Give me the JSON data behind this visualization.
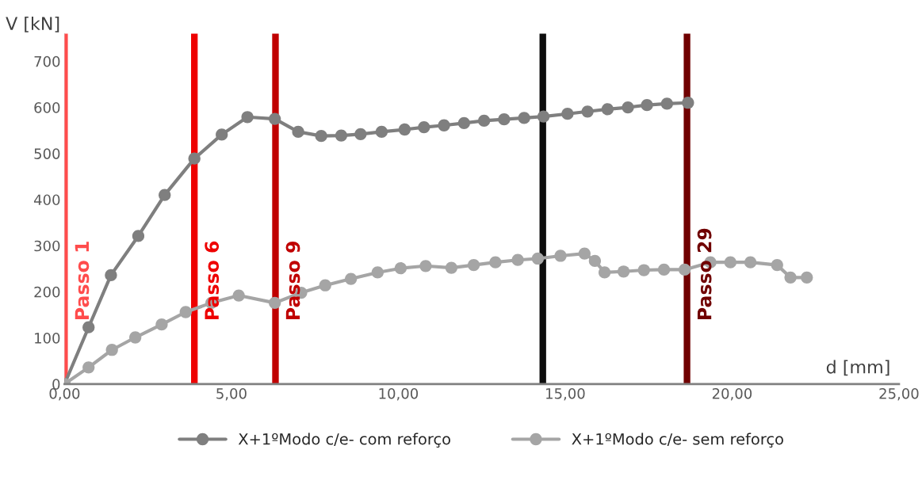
{
  "chart_data": {
    "type": "line",
    "xlabel": "d [mm]",
    "ylabel": "V [kN]",
    "xlim": [
      0,
      25
    ],
    "xticks": [
      {
        "value": 0,
        "label": "0,00"
      },
      {
        "value": 5,
        "label": "5,00"
      },
      {
        "value": 10,
        "label": "10,00"
      },
      {
        "value": 15,
        "label": "15,00"
      },
      {
        "value": 20,
        "label": "20,00"
      },
      {
        "value": 25,
        "label": "25,00"
      }
    ],
    "ylim": [
      0,
      760
    ],
    "yticks": [
      0,
      100,
      200,
      300,
      400,
      500,
      600,
      700
    ],
    "grid": false,
    "legend": "bottom",
    "marker": "circle",
    "line_style": "solid",
    "series": [
      {
        "name": "X+1ºModo c/e- com reforço",
        "color": "#7f7f7f",
        "x": [
          0,
          0.72,
          1.39,
          2.21,
          3.0,
          3.89,
          4.71,
          5.48,
          6.3,
          7.0,
          7.69,
          8.29,
          8.87,
          9.5,
          10.19,
          10.77,
          11.37,
          11.97,
          12.57,
          13.17,
          13.77,
          14.35,
          15.07,
          15.67,
          16.27,
          16.88,
          17.45,
          18.05,
          18.68
        ],
        "values": [
          0,
          123,
          236,
          321,
          410,
          489,
          541,
          579,
          575,
          547,
          538,
          539,
          542,
          547,
          552,
          557,
          561,
          566,
          571,
          574,
          577,
          580,
          586,
          591,
          596,
          600,
          605,
          608,
          610
        ]
      },
      {
        "name": "X+1ºModo c/e- sem reforço",
        "color": "#a5a5a5",
        "x": [
          0,
          0.72,
          1.42,
          2.12,
          2.91,
          3.63,
          4.4,
          5.22,
          6.3,
          7.09,
          7.81,
          8.58,
          9.38,
          10.07,
          10.82,
          11.59,
          12.26,
          12.91,
          13.58,
          14.18,
          14.86,
          15.58,
          15.89,
          16.18,
          16.75,
          17.36,
          17.96,
          18.58,
          19.35,
          19.95,
          20.55,
          21.35,
          21.75,
          22.24
        ],
        "values": [
          0,
          36,
          74,
          101,
          129,
          156,
          176,
          192,
          176,
          198,
          214,
          228,
          242,
          251,
          256,
          252,
          258,
          264,
          269,
          272,
          278,
          283,
          267,
          242,
          244,
          247,
          248,
          248,
          264,
          264,
          264,
          258,
          231,
          231
        ]
      }
    ],
    "ref_lines": [
      {
        "axis": "x",
        "value": 0,
        "label": "Passo 1",
        "color": "#ff4c4c"
      },
      {
        "axis": "x",
        "value": 3.89,
        "label": "Passo 6",
        "color": "#ee0000"
      },
      {
        "axis": "x",
        "value": 6.32,
        "label": "Passo 9",
        "color": "#c00000"
      },
      {
        "axis": "x",
        "value": 14.33,
        "color": "#0d0d0d"
      },
      {
        "axis": "x",
        "value": 18.65,
        "label": "Passo 29",
        "color": "#700000"
      }
    ]
  }
}
